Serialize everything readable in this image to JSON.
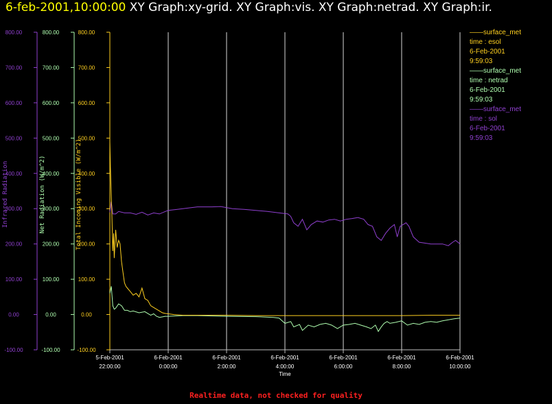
{
  "title": {
    "timestamp": "6-feb-2001,10:00:00",
    "graphs": "XY Graph:xy-grid.  XY Graph:vis.  XY Graph:netrad.  XY Graph:ir."
  },
  "footer": "Realtime data, not checked for quality",
  "colors": {
    "ir": "#9040d0",
    "netrad": "#b0ffb0",
    "vis": "#ffd020",
    "grid": "#ffffff",
    "footer": "#ff2020"
  },
  "legend": [
    {
      "line": "——surface_met",
      "var": "time : esol",
      "date": "6-Feb-2001",
      "time": "9:59:03",
      "color": "#ffd020"
    },
    {
      "line": "——surface_met",
      "var": "time : netrad",
      "date": "6-Feb-2001",
      "time": "9:59:03",
      "color": "#b0ffb0"
    },
    {
      "line": "——surface_met",
      "var": "time : sol",
      "date": "6-Feb-2001",
      "time": "9:59:03",
      "color": "#9040d0"
    }
  ],
  "chart_data": {
    "type": "line",
    "xlabel": "Time",
    "x_ticks": [
      {
        "line1": "5-Feb-2001",
        "line2": "22:00:00",
        "hour": -2
      },
      {
        "line1": "6-Feb-2001",
        "line2": "0:00:00",
        "hour": 0
      },
      {
        "line1": "6-Feb-2001",
        "line2": "2:00:00",
        "hour": 2
      },
      {
        "line1": "6-Feb-2001",
        "line2": "4:00:00",
        "hour": 4
      },
      {
        "line1": "6-Feb-2001",
        "line2": "6:00:00",
        "hour": 6
      },
      {
        "line1": "6-Feb-2001",
        "line2": "8:00:00",
        "hour": 8
      },
      {
        "line1": "6-Feb-2001",
        "line2": "10:00:00",
        "hour": 10
      }
    ],
    "xlim": [
      -2,
      10
    ],
    "grid": "vertical",
    "axes": [
      {
        "key": "ir",
        "label": "Infrared Radiation",
        "ylim": [
          -100,
          800
        ],
        "color": "#9040d0",
        "ticks": [
          "-100.00",
          "0.00",
          "100.00",
          "200.00",
          "300.00",
          "400.00",
          "500.00",
          "600.00",
          "700.00",
          "800.00"
        ]
      },
      {
        "key": "netrad",
        "label": "Net Radiation (W/m^2)",
        "ylim": [
          -100,
          800
        ],
        "color": "#b0ffb0",
        "ticks": [
          "-100.00",
          "0.00",
          "100.00",
          "200.00",
          "300.00",
          "400.00",
          "500.00",
          "600.00",
          "700.00",
          "800.00"
        ]
      },
      {
        "key": "vis",
        "label": "Total Incoming Visible (W/m^2)",
        "ylim": [
          -100,
          800
        ],
        "color": "#ffd020",
        "ticks": [
          "-100.00",
          "0.00",
          "100.00",
          "200.00",
          "300.00",
          "400.00",
          "500.00",
          "600.00",
          "700.00",
          "800.00"
        ]
      }
    ],
    "series": [
      {
        "name": "surface_met time : sol",
        "axis": "ir",
        "x": [
          -2.0,
          -1.95,
          -1.9,
          -1.8,
          -1.7,
          -1.5,
          -1.3,
          -1.1,
          -0.9,
          -0.7,
          -0.5,
          -0.3,
          -0.1,
          0.0,
          0.5,
          1.0,
          1.5,
          1.8,
          2.2,
          2.6,
          3.0,
          3.4,
          3.8,
          4.1,
          4.2,
          4.3,
          4.45,
          4.6,
          4.75,
          4.9,
          5.1,
          5.3,
          5.5,
          5.7,
          5.9,
          6.1,
          6.3,
          6.5,
          6.7,
          6.85,
          7.0,
          7.15,
          7.3,
          7.45,
          7.6,
          7.75,
          7.85,
          7.95,
          8.05,
          8.15,
          8.25,
          8.4,
          8.6,
          9.0,
          9.4,
          9.6,
          9.75,
          9.85,
          10.0
        ],
        "y": [
          290,
          320,
          285,
          285,
          292,
          288,
          288,
          284,
          290,
          282,
          288,
          285,
          292,
          295,
          300,
          305,
          305,
          306,
          300,
          298,
          295,
          292,
          288,
          285,
          278,
          260,
          250,
          270,
          240,
          255,
          265,
          262,
          268,
          270,
          265,
          270,
          272,
          275,
          270,
          255,
          250,
          220,
          210,
          230,
          245,
          255,
          220,
          250,
          255,
          260,
          250,
          220,
          205,
          200,
          200,
          195,
          205,
          210,
          200
        ]
      },
      {
        "name": "surface_met time : netrad",
        "axis": "netrad",
        "x": [
          -2.0,
          -1.95,
          -1.9,
          -1.85,
          -1.8,
          -1.7,
          -1.6,
          -1.5,
          -1.4,
          -1.3,
          -1.2,
          -1.0,
          -0.8,
          -0.6,
          -0.5,
          -0.4,
          -0.3,
          -0.1,
          0.0,
          0.5,
          1.0,
          2.0,
          3.0,
          3.6,
          3.8,
          4.0,
          4.2,
          4.3,
          4.5,
          4.6,
          4.8,
          5.0,
          5.2,
          5.4,
          5.6,
          5.8,
          6.0,
          6.2,
          6.4,
          6.6,
          6.8,
          6.95,
          7.1,
          7.2,
          7.3,
          7.4,
          7.5,
          7.6,
          7.8,
          8.0,
          8.2,
          8.4,
          8.6,
          8.8,
          9.0,
          9.2,
          9.4,
          9.6,
          9.8,
          10.0
        ],
        "y": [
          60,
          80,
          25,
          15,
          18,
          30,
          25,
          12,
          12,
          8,
          10,
          5,
          8,
          -2,
          2,
          -5,
          -8,
          -5,
          -5,
          -3,
          -3,
          -5,
          -6,
          -8,
          -10,
          -25,
          -20,
          -35,
          -28,
          -45,
          -30,
          -35,
          -28,
          -25,
          -30,
          -40,
          -30,
          -28,
          -25,
          -30,
          -35,
          -40,
          -30,
          -48,
          -35,
          -25,
          -20,
          -25,
          -22,
          -18,
          -30,
          -25,
          -28,
          -22,
          -20,
          -22,
          -18,
          -15,
          -12,
          -10
        ]
      },
      {
        "name": "surface_met time : esol",
        "axis": "vis",
        "x": [
          -2.0,
          -1.98,
          -1.96,
          -1.93,
          -1.9,
          -1.87,
          -1.85,
          -1.8,
          -1.75,
          -1.7,
          -1.65,
          -1.6,
          -1.55,
          -1.5,
          -1.45,
          -1.4,
          -1.3,
          -1.2,
          -1.1,
          -1.0,
          -0.9,
          -0.8,
          -0.7,
          -0.6,
          -0.5,
          -0.4,
          -0.3,
          -0.2,
          -0.1,
          0.0,
          0.2,
          0.5,
          1.0,
          2.0,
          3.0,
          4.0,
          5.0,
          6.0,
          7.0,
          8.0,
          9.0,
          10.0
        ],
        "y": [
          490,
          420,
          360,
          280,
          180,
          230,
          160,
          240,
          190,
          210,
          200,
          150,
          120,
          90,
          80,
          75,
          65,
          55,
          60,
          50,
          75,
          45,
          40,
          25,
          20,
          15,
          10,
          5,
          3,
          2,
          0,
          -2,
          -2,
          -2,
          -3,
          -3,
          -3,
          -3,
          -3,
          -3,
          -2,
          -2
        ]
      }
    ]
  }
}
